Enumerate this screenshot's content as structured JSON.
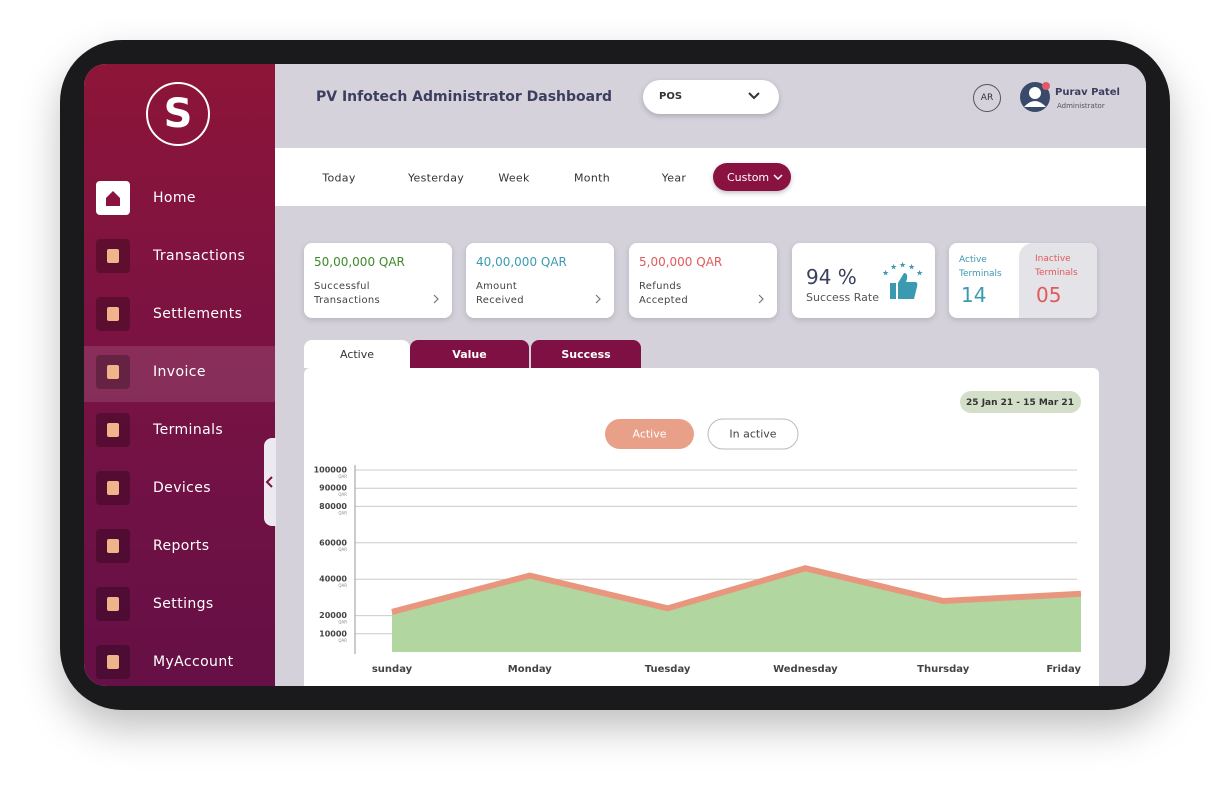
{
  "sidebar": {
    "logo": "S",
    "menu": [
      "Home",
      "Transactions",
      "Settlements",
      "Invoice",
      "Terminals",
      "Devices",
      "Reports",
      "Settings",
      "MyAccount"
    ]
  },
  "header": {
    "title": "PV Infotech Administrator Dashboard",
    "dropdown": "POS",
    "language": "AR",
    "user": {
      "name": "Purav Patel",
      "role": "Administrator"
    }
  },
  "filters": {
    "options": [
      "Today",
      "Yesterday",
      "Week",
      "Month",
      "Year"
    ],
    "custom": "Custom"
  },
  "cards": [
    {
      "amount": "50,00,000 QAR",
      "label": "Successful Transactions",
      "color": "#3d8a2a"
    },
    {
      "amount": "40,00,000 QAR",
      "label": "Amount Received",
      "color": "#3b9bb2"
    },
    {
      "amount": "5,00,000 QAR",
      "label": "Refunds Accepted",
      "color": "#e0595c"
    }
  ],
  "success_rate": {
    "value": "94 %",
    "label": "Success Rate"
  },
  "terminals": {
    "active": {
      "label": "Active Terminals",
      "count": "14"
    },
    "inactive": {
      "label": "Inactive Terminals",
      "count": "05"
    }
  },
  "tabs": [
    "Active",
    "Value",
    "Success"
  ],
  "chart_data": {
    "type": "area",
    "date_range": "25 Jan 21 - 15 Mar 21",
    "toggles": [
      "Active",
      "In active"
    ],
    "categories": [
      "sunday",
      "Monday",
      "Tuesday",
      "Wednesday",
      "Thursday",
      "Friday"
    ],
    "values": [
      22000,
      42000,
      24000,
      46000,
      28000,
      32000
    ],
    "color": "#b2d6a0",
    "line_color": "#e8977e",
    "ylim": [
      0,
      100000
    ],
    "yticks": [
      100000,
      90000,
      80000,
      60000,
      40000,
      20000,
      10000
    ],
    "y_unit": "QAR",
    "grid": true
  }
}
